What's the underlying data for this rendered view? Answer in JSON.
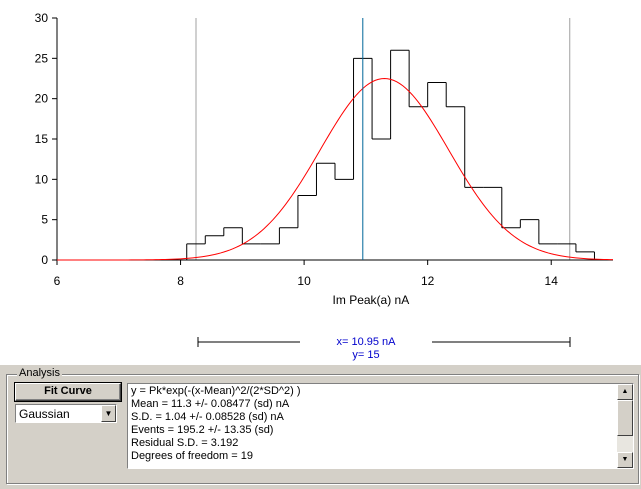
{
  "chart_data": {
    "type": "histogram",
    "xlabel": "Im Peak(a) nA",
    "xlim": [
      6,
      15
    ],
    "ylim": [
      0,
      30
    ],
    "xticks": [
      6,
      8,
      10,
      12,
      14
    ],
    "yticks": [
      0,
      5,
      10,
      15,
      20,
      25,
      30
    ],
    "bin_width": 0.3,
    "bins": [
      {
        "x": 7.8,
        "y": 0
      },
      {
        "x": 8.1,
        "y": 2
      },
      {
        "x": 8.4,
        "y": 3
      },
      {
        "x": 8.7,
        "y": 4
      },
      {
        "x": 9.0,
        "y": 2
      },
      {
        "x": 9.3,
        "y": 2
      },
      {
        "x": 9.6,
        "y": 4
      },
      {
        "x": 9.9,
        "y": 8
      },
      {
        "x": 10.2,
        "y": 12
      },
      {
        "x": 10.5,
        "y": 10
      },
      {
        "x": 10.8,
        "y": 25
      },
      {
        "x": 11.1,
        "y": 15
      },
      {
        "x": 11.4,
        "y": 26
      },
      {
        "x": 11.7,
        "y": 19
      },
      {
        "x": 12.0,
        "y": 22
      },
      {
        "x": 12.3,
        "y": 19
      },
      {
        "x": 12.6,
        "y": 9
      },
      {
        "x": 12.9,
        "y": 9
      },
      {
        "x": 13.2,
        "y": 4
      },
      {
        "x": 13.5,
        "y": 5
      },
      {
        "x": 13.8,
        "y": 2
      },
      {
        "x": 14.1,
        "y": 2
      },
      {
        "x": 14.4,
        "y": 1
      },
      {
        "x": 14.7,
        "y": 0
      }
    ],
    "fit": {
      "peak": 22.5,
      "mean": 11.3,
      "sd": 1.04,
      "color": "#ff0000"
    },
    "range_cursors": [
      8.25,
      14.3
    ],
    "cursor": {
      "x": 10.95,
      "color": "#006699"
    },
    "grid": false
  },
  "cursor_readout": {
    "x_text": "x= 10.95 nA",
    "y_text": "y= 15"
  },
  "analysis": {
    "label": "Analysis",
    "fit_button_label": "Fit Curve",
    "model_selected": "Gaussian",
    "results": [
      "y = Pk*exp(-(x-Mean)^2/(2*SD^2) )",
      "Mean = 11.3 +/- 0.08477 (sd) nA",
      "S.D. = 1.04 +/- 0.08528 (sd) nA",
      "Events = 195.2 +/- 13.35 (sd)",
      "Residual S.D. = 3.192",
      "Degrees of freedom = 19"
    ]
  }
}
